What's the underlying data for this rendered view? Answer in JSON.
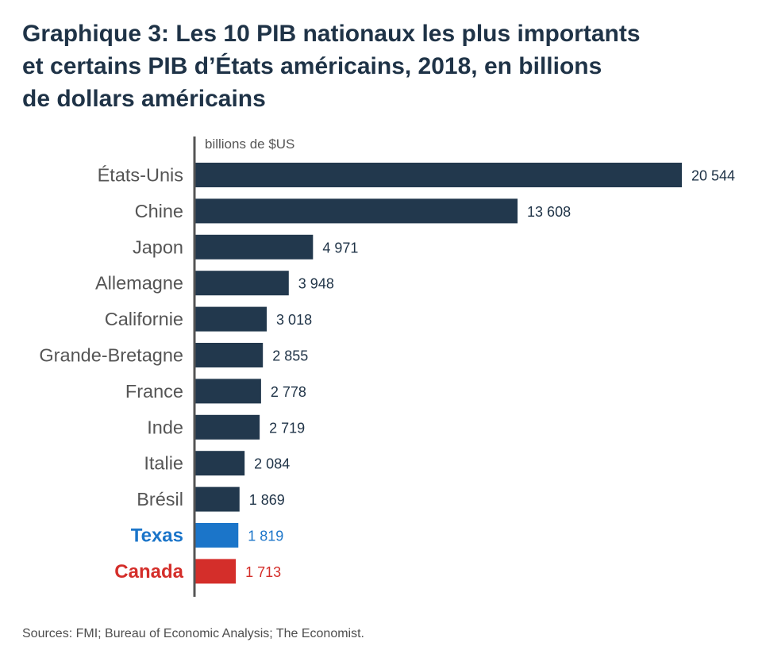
{
  "title_lines": [
    "Graphique 3: Les 10 PIB nationaux les plus importants",
    "et certains PIB d’États américains, 2018, en billions",
    "de dollars américains"
  ],
  "source": "Sources: FMI; Bureau of Economic Analysis; The Economist.",
  "colors": {
    "default_bar": "#22384d",
    "texas": "#1b75c9",
    "canada": "#d42e2a",
    "category_text": "#555555",
    "value_text": "#1f3347",
    "axis": "#555555"
  },
  "chart_data": {
    "type": "bar",
    "orientation": "horizontal",
    "unit_label": "billions de $US",
    "categories": [
      "États-Unis",
      "Chine",
      "Japon",
      "Allemagne",
      "Californie",
      "Grande-Bretagne",
      "France",
      "Inde",
      "Italie",
      "Brésil",
      "Texas",
      "Canada"
    ],
    "values": [
      20544,
      13608,
      4971,
      3948,
      3018,
      2855,
      2778,
      2719,
      2084,
      1869,
      1819,
      1713
    ],
    "value_labels": [
      "20 544",
      "13 608",
      "4 971",
      "3 948",
      "3 018",
      "2 855",
      "2 778",
      "2 719",
      "2 084",
      "1 869",
      "1 819",
      "1 713"
    ],
    "highlights": {
      "Texas": "#1b75c9",
      "Canada": "#d42e2a"
    },
    "xlim": [
      0,
      20544
    ],
    "grid": false,
    "legend": "none"
  }
}
